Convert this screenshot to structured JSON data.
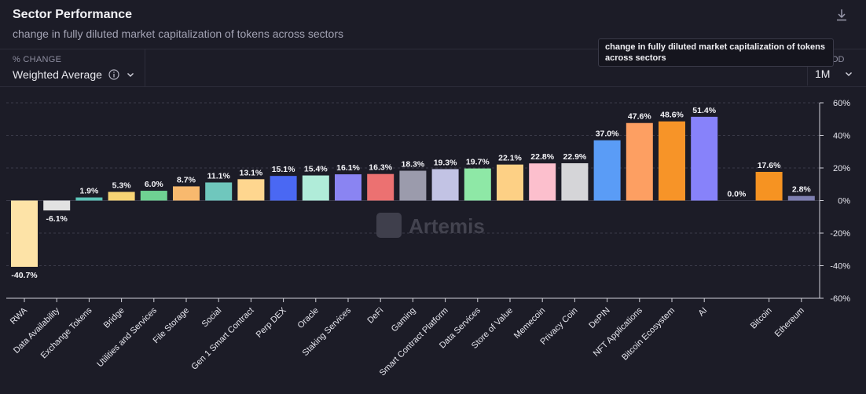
{
  "header": {
    "title": "Sector Performance",
    "subtitle": "change in fully diluted market capitalization of tokens across sectors",
    "download_icon": "download-icon"
  },
  "controls": {
    "metric_label": "% CHANGE",
    "metric_value": "Weighted Average",
    "period_label": "OD",
    "period_value": "1M"
  },
  "tooltip": {
    "text": "change in fully diluted market capitalization of tokens across sectors"
  },
  "watermark": "Artemis",
  "chart_data": {
    "type": "bar",
    "title": "Sector Performance",
    "subtitle": "change in fully diluted market capitalization of tokens across sectors",
    "xlabel": "",
    "ylabel": "",
    "ylim": [
      -60,
      60
    ],
    "yticks": [
      60,
      40,
      20,
      0,
      -20,
      -40,
      -60
    ],
    "ytick_labels": [
      "60%",
      "40%",
      "20%",
      "0%",
      "-20%",
      "-40%",
      "-60%"
    ],
    "grid": true,
    "categories": [
      "RWA",
      "Data Availability",
      "Exchange Tokens",
      "Bridge",
      "Utilities and Services",
      "File Storage",
      "Social",
      "Gen 1 Smart Contract",
      "Perp DEX",
      "Oracle",
      "Staking Services",
      "DeFi",
      "Gaming",
      "Smart Contract Platform",
      "Data Services",
      "Store of Value",
      "Memecoin",
      "Privacy Coin",
      "DePIN",
      "NFT Applications",
      "Bitcoin Ecosystem",
      "AI",
      "",
      "Bitcoin",
      "Ethereum"
    ],
    "values": [
      -40.7,
      -6.1,
      1.9,
      5.3,
      6.0,
      8.7,
      11.1,
      13.1,
      15.1,
      15.4,
      16.1,
      16.3,
      18.3,
      19.3,
      19.7,
      22.1,
      22.8,
      22.9,
      37.0,
      47.6,
      48.6,
      51.4,
      0.0,
      17.6,
      2.8
    ],
    "value_labels": [
      "-40.7%",
      "-6.1%",
      "1.9%",
      "5.3%",
      "6.0%",
      "8.7%",
      "11.1%",
      "13.1%",
      "15.1%",
      "15.4%",
      "16.1%",
      "16.3%",
      "18.3%",
      "19.3%",
      "19.7%",
      "22.1%",
      "22.8%",
      "22.9%",
      "37.0%",
      "47.6%",
      "48.6%",
      "51.4%",
      "0.0%",
      "17.6%",
      "2.8%"
    ],
    "colors": [
      "#fde3a7",
      "#e2e2e2",
      "#5bc4b8",
      "#f7d474",
      "#6fd292",
      "#f8b96e",
      "#6fc7bd",
      "#fed68f",
      "#4a68f3",
      "#b0ecd9",
      "#8a84f2",
      "#ec7171",
      "#9b9bac",
      "#c2c3e4",
      "#8ee8a6",
      "#fdd085",
      "#fcbfcd",
      "#d5d5d8",
      "#5a9cf6",
      "#fd9f62",
      "#f79428",
      "#8782fa",
      "#888888",
      "#f69322",
      "#7e7fb1"
    ]
  }
}
